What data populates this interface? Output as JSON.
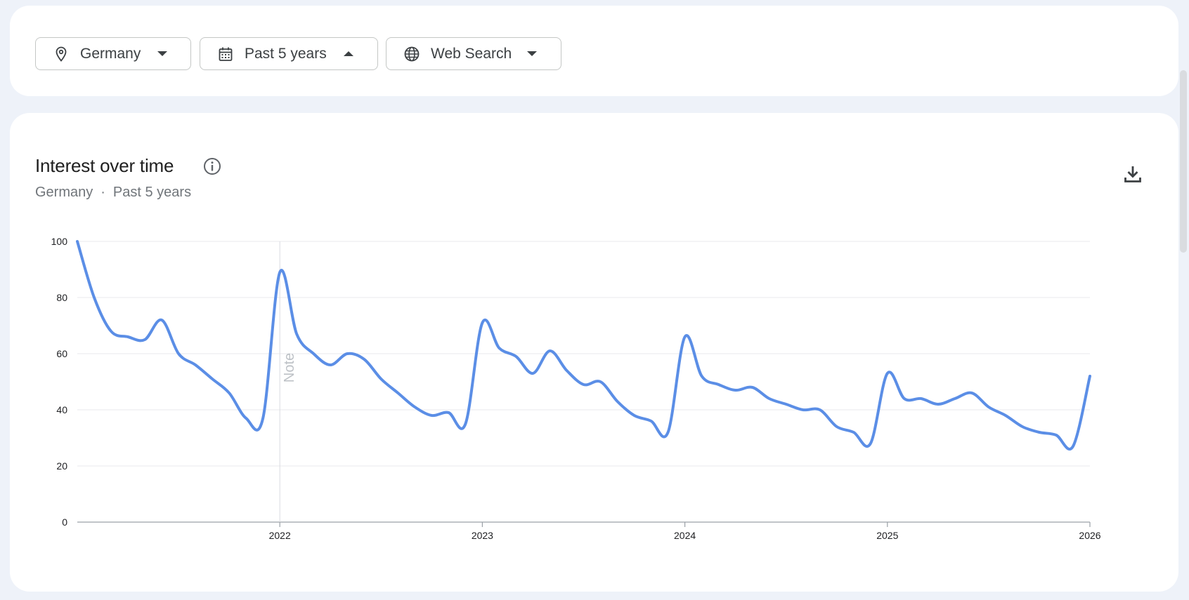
{
  "filters": {
    "location": {
      "label": "Germany",
      "icon": "location-pin-icon"
    },
    "time_range": {
      "label": "Past 5 years",
      "icon": "calendar-icon",
      "expanded": true
    },
    "property": {
      "label": "Web Search",
      "icon": "globe-icon"
    }
  },
  "chart_card": {
    "title": "Interest over time",
    "subtitle": {
      "location": "Germany",
      "separator": "·",
      "range": "Past 5 years"
    },
    "note_label": "Note"
  },
  "colors": {
    "line": "#5b8ee6",
    "grid": "#e8eaed",
    "axis": "#9aa0a6",
    "background": "#eef2f9"
  },
  "chart_data": {
    "type": "line",
    "title": "Interest over time",
    "xlabel": "",
    "ylabel": "",
    "ylim": [
      0,
      100
    ],
    "y_ticks": [
      0,
      20,
      40,
      60,
      80,
      100
    ],
    "x_ticks": [
      "2022",
      "2023",
      "2024",
      "2025",
      "2026"
    ],
    "xlim": [
      "2021-01",
      "2026-01"
    ],
    "grid": true,
    "legend": "none",
    "annotations": [
      {
        "x": "2022-01",
        "label": "Note"
      }
    ],
    "series": [
      {
        "x": [
          "2021-01",
          "2021-02",
          "2021-03",
          "2021-04",
          "2021-05",
          "2021-06",
          "2021-07",
          "2021-08",
          "2021-09",
          "2021-10",
          "2021-11",
          "2021-12",
          "2022-01",
          "2022-02",
          "2022-03",
          "2022-04",
          "2022-05",
          "2022-06",
          "2022-07",
          "2022-08",
          "2022-09",
          "2022-10",
          "2022-11",
          "2022-12",
          "2023-01",
          "2023-02",
          "2023-03",
          "2023-04",
          "2023-05",
          "2023-06",
          "2023-07",
          "2023-08",
          "2023-09",
          "2023-10",
          "2023-11",
          "2023-12",
          "2024-01",
          "2024-02",
          "2024-03",
          "2024-04",
          "2024-05",
          "2024-06",
          "2024-07",
          "2024-08",
          "2024-09",
          "2024-10",
          "2024-11",
          "2024-12",
          "2025-01",
          "2025-02",
          "2025-03",
          "2025-04",
          "2025-05",
          "2025-06",
          "2025-07",
          "2025-08",
          "2025-09",
          "2025-10",
          "2025-11",
          "2025-12",
          "2026-01"
        ],
        "values": [
          100,
          80,
          68,
          66,
          65,
          72,
          60,
          56,
          51,
          46,
          37,
          37,
          89,
          67,
          60,
          56,
          60,
          58,
          51,
          46,
          41,
          38,
          39,
          35,
          71,
          62,
          59,
          53,
          61,
          54,
          49,
          50,
          43,
          38,
          36,
          32,
          66,
          52,
          49,
          47,
          48,
          44,
          42,
          40,
          40,
          34,
          32,
          28,
          53,
          44,
          44,
          42,
          44,
          46,
          41,
          38,
          34,
          32,
          31,
          27,
          52
        ]
      }
    ]
  }
}
